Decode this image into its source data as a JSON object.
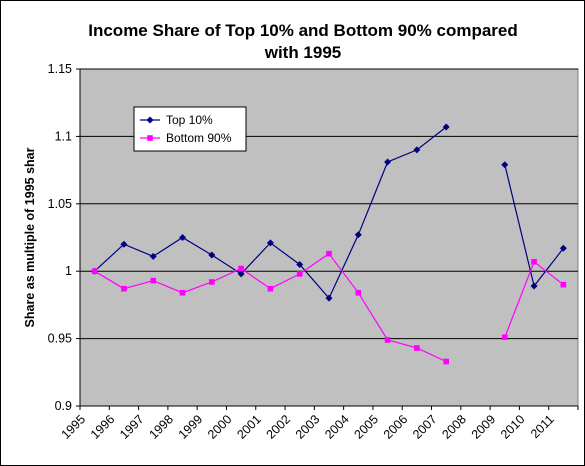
{
  "chart_data": {
    "type": "line",
    "title_lines": [
      "Income Share of Top 10% and Bottom 90% compared",
      "with 1995"
    ],
    "ylabel": "Share as multiple of 1995 shar",
    "xlabel": "",
    "categories": [
      "1995",
      "1996",
      "1997",
      "1998",
      "1999",
      "2000",
      "2001",
      "2002",
      "2003",
      "2004",
      "2005",
      "2006",
      "2007",
      "2008",
      "2009",
      "2010",
      "2011"
    ],
    "ylim": [
      0.9,
      1.15
    ],
    "yticks": [
      "0.9",
      "0.95",
      "1",
      "1.05",
      "1.1",
      "1.15"
    ],
    "ytick_values": [
      0.9,
      0.95,
      1.0,
      1.05,
      1.1,
      1.15
    ],
    "grid": true,
    "plot_background": "#c0c0c0",
    "legend_position": "upper-left inside plot",
    "series": [
      {
        "name": "Top 10%",
        "color": "#000080",
        "marker": "diamond",
        "values": [
          1.0,
          1.02,
          1.011,
          1.025,
          1.012,
          0.998,
          1.021,
          1.005,
          0.98,
          1.027,
          1.081,
          1.09,
          1.107,
          null,
          1.079,
          0.989,
          1.017
        ]
      },
      {
        "name": "Bottom 90%",
        "color": "#ff00ff",
        "marker": "square",
        "values": [
          1.0,
          0.987,
          0.993,
          0.984,
          0.992,
          1.002,
          0.987,
          0.998,
          1.013,
          0.984,
          0.949,
          0.943,
          0.933,
          null,
          0.951,
          1.007,
          0.99
        ]
      }
    ]
  }
}
